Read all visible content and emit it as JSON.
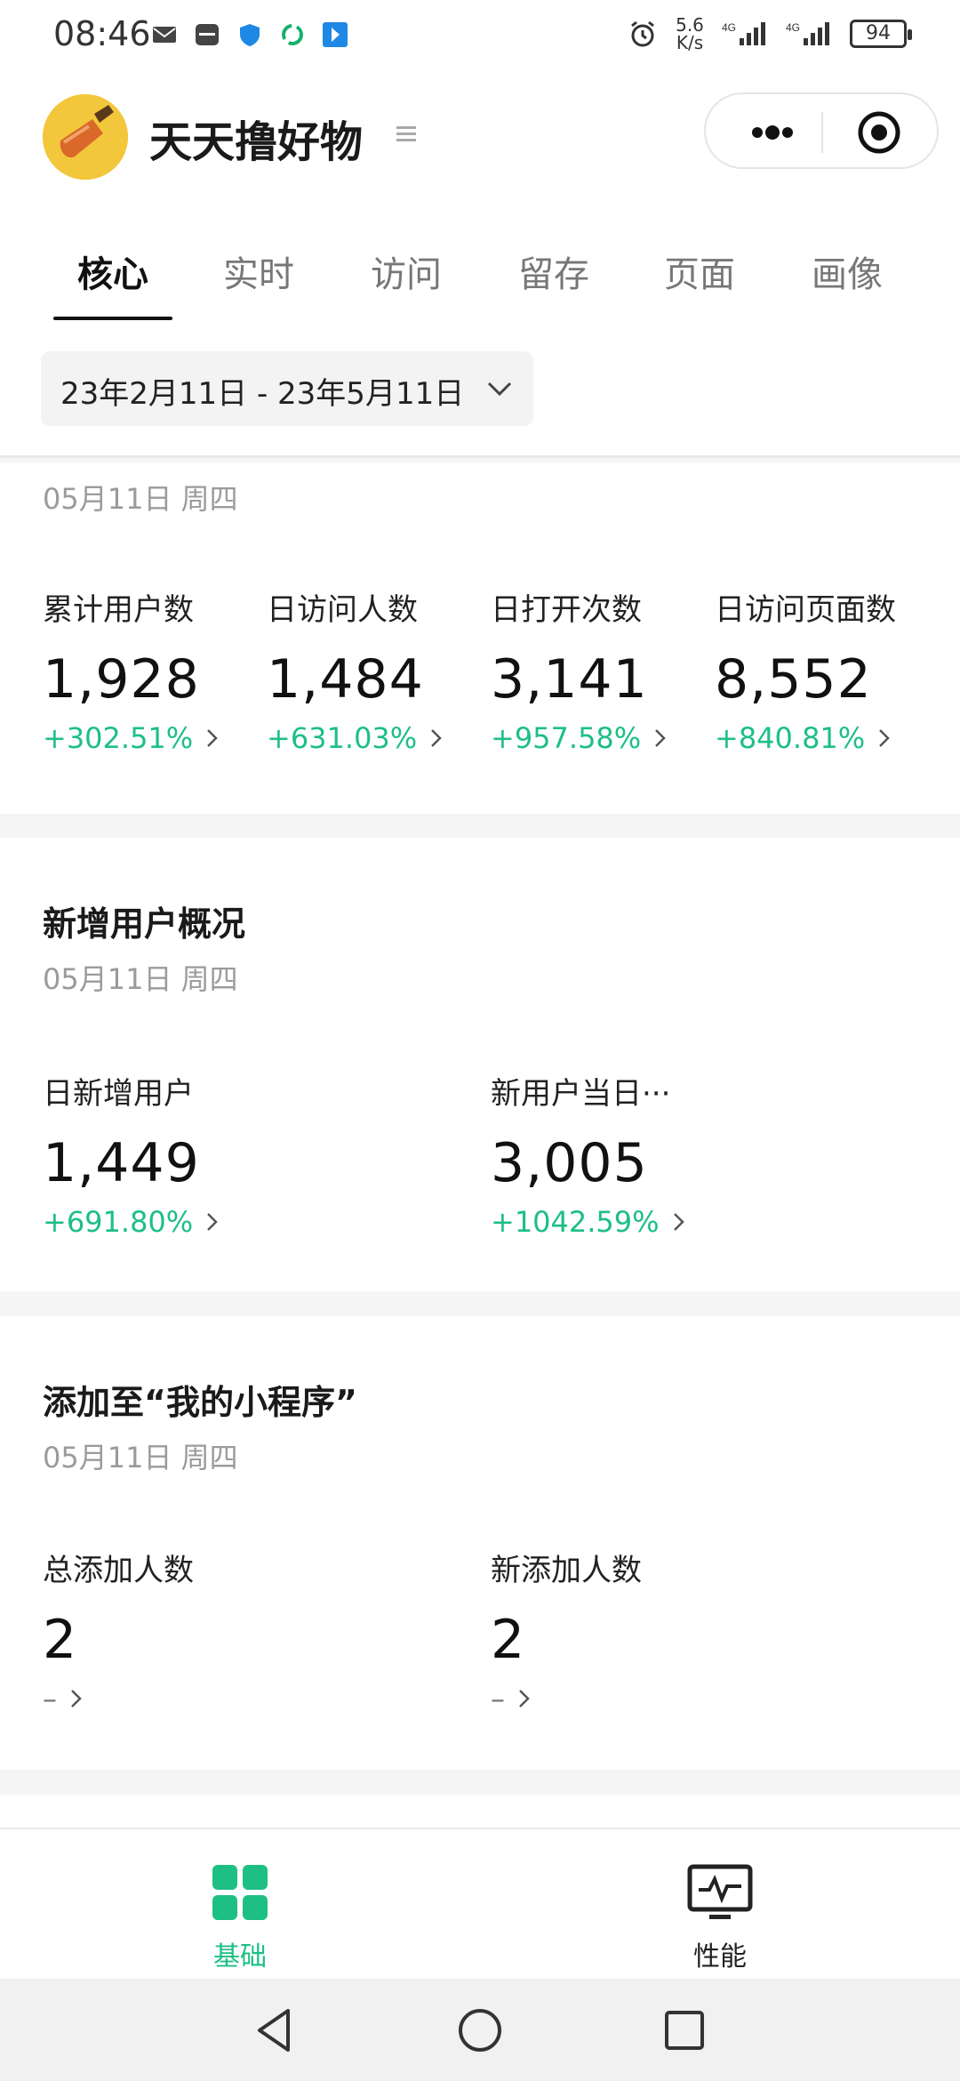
{
  "status_bar": {
    "time": "08:46",
    "net_speed_value": "5.6",
    "net_speed_unit": "K/s",
    "network_1": "4G",
    "network_2": "4G",
    "battery": "94",
    "icons": [
      "mail-icon",
      "huawei-icon",
      "shield-icon",
      "sync-icon",
      "download-icon",
      "alarm-icon",
      "signal-icon"
    ]
  },
  "header": {
    "app_title": "天天撸好物",
    "logo": "shovel-logo-icon",
    "capsule": {
      "more_icon": "more-dots-icon",
      "close_icon": "close-target-icon"
    }
  },
  "tabs": [
    {
      "label": "核心",
      "active": true
    },
    {
      "label": "实时"
    },
    {
      "label": "访问"
    },
    {
      "label": "留存"
    },
    {
      "label": "页面"
    },
    {
      "label": "画像"
    }
  ],
  "date_range": {
    "value": "23年2月11日 - 23年5月11日"
  },
  "core_overview": {
    "date": "05月11日 周四",
    "metrics": [
      {
        "label": "累计用户数",
        "value": "1,928",
        "change": "+302.51%"
      },
      {
        "label": "日访问人数",
        "value": "1,484",
        "change": "+631.03%"
      },
      {
        "label": "日打开次数",
        "value": "3,141",
        "change": "+957.58%"
      },
      {
        "label": "日访问页面数",
        "value": "8,552",
        "change": "+840.81%"
      }
    ]
  },
  "new_users": {
    "title": "新增用户概况",
    "date": "05月11日 周四",
    "metrics": [
      {
        "label": "日新增用户",
        "value": "1,449",
        "change": "+691.80%"
      },
      {
        "label": "新用户当日···",
        "value": "3,005",
        "change": "+1042.59%"
      }
    ]
  },
  "added_to_my_miniprogram": {
    "title": "添加至“我的小程序”",
    "date": "05月11日 周四",
    "metrics": [
      {
        "label": "总添加人数",
        "value": "2",
        "change": "–"
      },
      {
        "label": "新添加人数",
        "value": "2",
        "change": "–"
      }
    ]
  },
  "bottom_nav": [
    {
      "label": "基础",
      "icon": "grid-icon",
      "active": true
    },
    {
      "label": "性能",
      "icon": "monitor-pulse-icon"
    }
  ],
  "colors": {
    "accent_green": "#1dbf84",
    "logo_yellow": "#f3c73c",
    "logo_orange": "#d9682a"
  }
}
